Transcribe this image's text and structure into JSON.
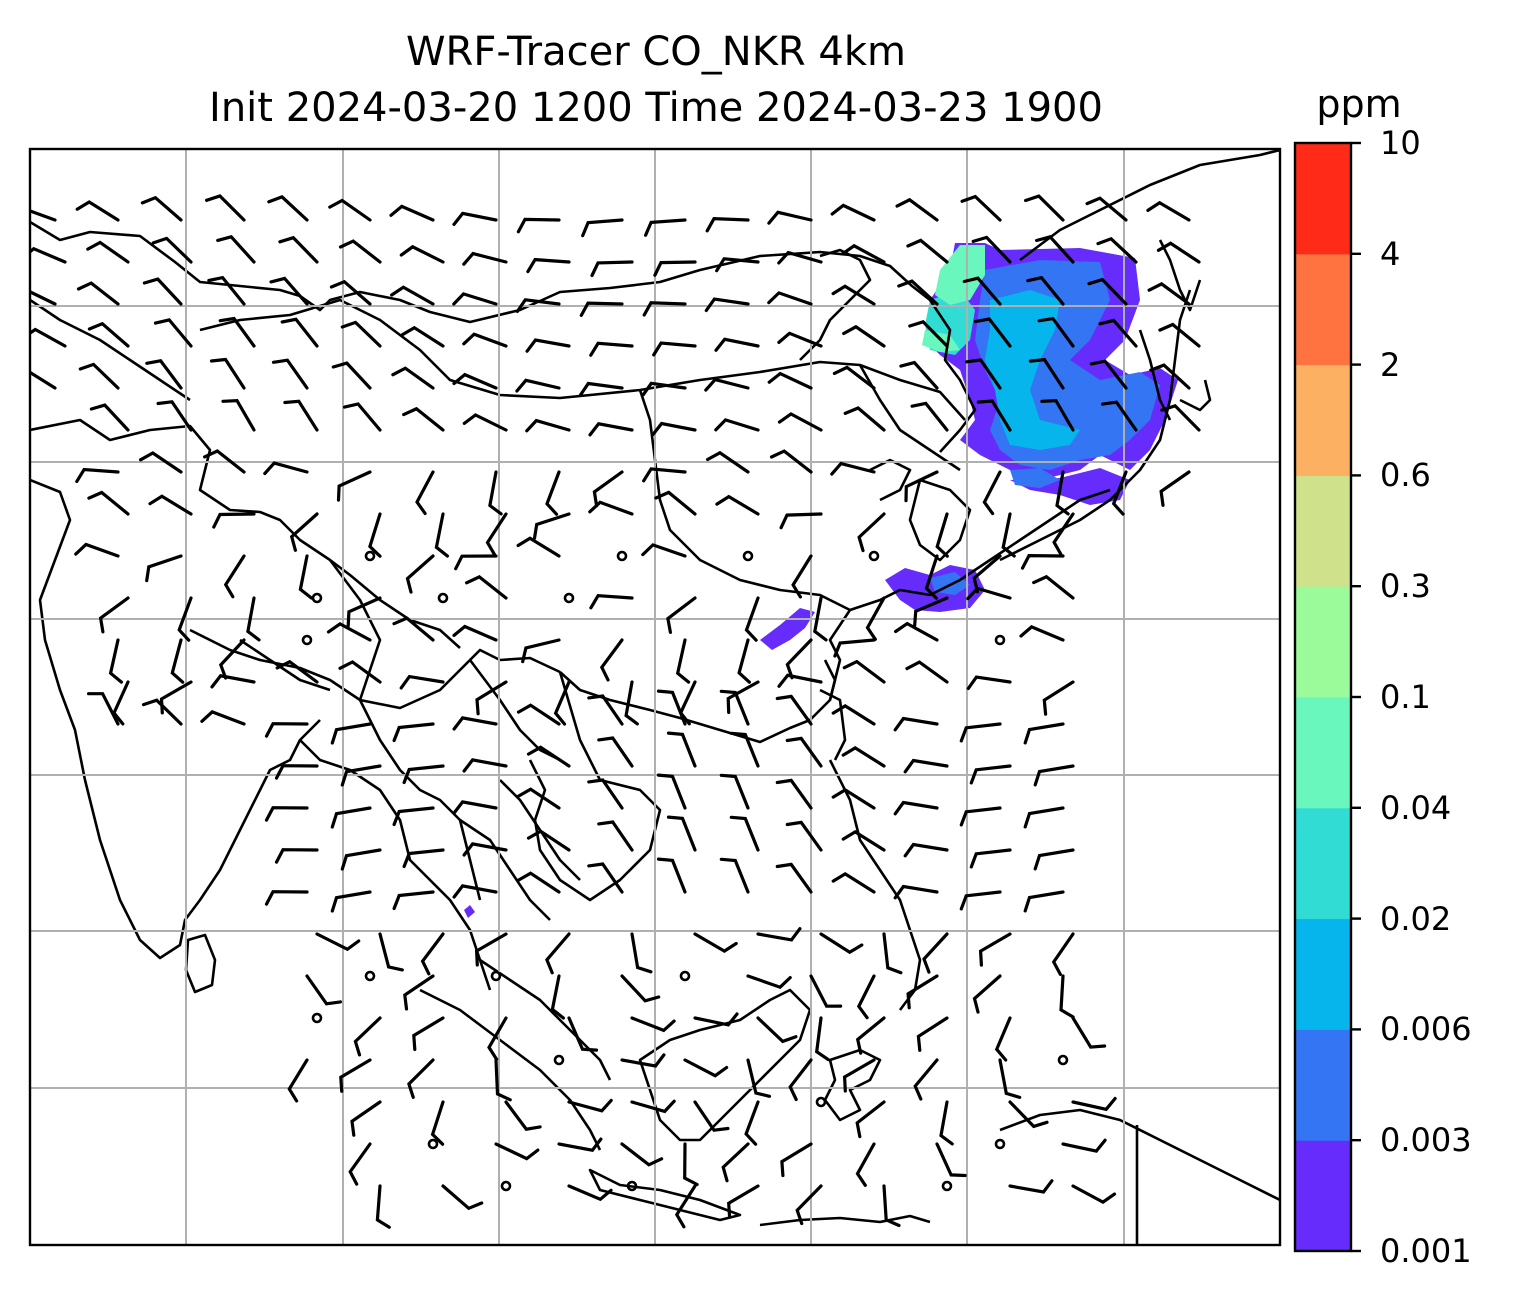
{
  "title": {
    "line1": "WRF-Tracer CO_NKR 4km",
    "line2": "Init 2024-03-20 1200 Time 2024-03-23 1900"
  },
  "colorbar": {
    "unit": "ppm",
    "tick_labels": [
      "0.001",
      "0.003",
      "0.006",
      "0.02",
      "0.04",
      "0.1",
      "0.3",
      "0.6",
      "2",
      "4",
      "10"
    ],
    "colors": [
      "#652cfb",
      "#3475f4",
      "#06b5ec",
      "#31dcd4",
      "#69f7bd",
      "#9bfa9a",
      "#cfe18a",
      "#fcb062",
      "#ff7340",
      "#ff2a17"
    ]
  },
  "map": {
    "field": "CO_NKR tracer concentration",
    "gridlines": true,
    "wind_barbs": true,
    "plume_colors_present": [
      "#652cfb",
      "#3475f4",
      "#06b5ec",
      "#31dcd4",
      "#69f7bd"
    ]
  }
}
